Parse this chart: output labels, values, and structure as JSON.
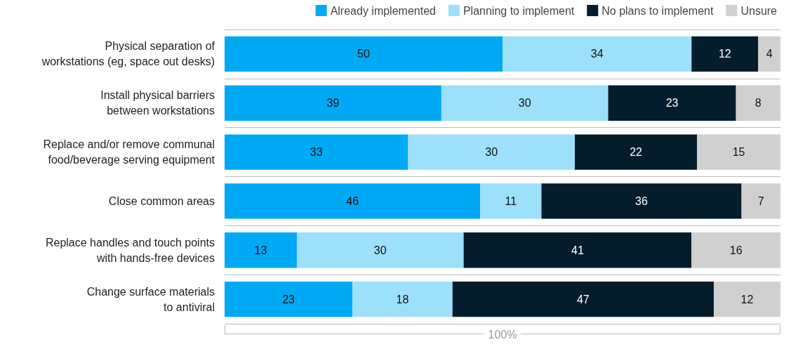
{
  "chart_data": {
    "type": "bar",
    "orientation": "horizontal",
    "stacked": true,
    "categories": [
      "Physical separation of\nworkstations (eg, space out desks)",
      "Install physical barriers\nbetween workstations",
      "Replace and/or remove communal\nfood/beverage serving equipment",
      "Close common areas",
      "Replace handles and touch points\nwith hands-free devices",
      "Change surface materials\nto antiviral"
    ],
    "series": [
      {
        "name": "Already implemented",
        "color": "#00a9f4",
        "values": [
          50,
          39,
          33,
          46,
          13,
          23
        ]
      },
      {
        "name": "Planning to implement",
        "color": "#9de0f9",
        "values": [
          34,
          30,
          30,
          11,
          30,
          18
        ]
      },
      {
        "name": "No plans to implement",
        "color": "#051c2c",
        "values": [
          12,
          23,
          22,
          36,
          41,
          47
        ]
      },
      {
        "name": "Unsure",
        "color": "#d0d0d0",
        "values": [
          4,
          8,
          15,
          7,
          16,
          12
        ]
      }
    ],
    "xlim": [
      0,
      100
    ],
    "tick_labels": "y",
    "data_labels": true,
    "grid": "y",
    "legend": "top right",
    "annotations": [
      "100%"
    ]
  }
}
